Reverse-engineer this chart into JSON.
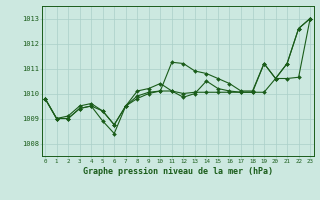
{
  "title": "Graphe pression niveau de la mer (hPa)",
  "hours": [
    0,
    1,
    2,
    3,
    4,
    5,
    6,
    7,
    8,
    9,
    10,
    11,
    12,
    13,
    14,
    15,
    16,
    17,
    18,
    19,
    20,
    21,
    22,
    23
  ],
  "ylim": [
    1007.5,
    1013.5
  ],
  "yticks": [
    1008,
    1009,
    1010,
    1011,
    1012,
    1013
  ],
  "line1": [
    1009.8,
    1009.0,
    1009.0,
    1009.4,
    1009.5,
    1009.3,
    1008.75,
    1009.5,
    1009.9,
    1010.05,
    1010.1,
    1011.25,
    1011.2,
    1010.9,
    1010.8,
    1010.6,
    1010.4,
    1010.1,
    1010.1,
    1011.2,
    1010.6,
    1011.2,
    1012.6,
    1013.0
  ],
  "line2": [
    1009.8,
    1009.0,
    1009.0,
    1009.4,
    1009.5,
    1008.9,
    1008.4,
    1009.5,
    1010.1,
    1010.2,
    1010.4,
    1010.1,
    1009.85,
    1010.0,
    1010.5,
    1010.2,
    1010.1,
    1010.05,
    1010.05,
    1011.2,
    1010.6,
    1011.2,
    1012.6,
    1013.0
  ],
  "line3": [
    1009.8,
    1009.0,
    1009.1,
    1009.5,
    1009.6,
    1009.3,
    1008.75,
    1009.5,
    1009.8,
    1010.0,
    1010.1,
    1010.1,
    1010.0,
    1010.05,
    1010.05,
    1010.05,
    1010.05,
    1010.05,
    1010.05,
    1010.05,
    1010.6,
    1010.6,
    1010.65,
    1013.0
  ],
  "line_color": "#1a5c1a",
  "bg_color": "#cce8e0",
  "grid_color": "#aacfc8",
  "text_color": "#1a5c1a",
  "marker": "D",
  "marker_size": 2.0,
  "linewidth": 0.8
}
